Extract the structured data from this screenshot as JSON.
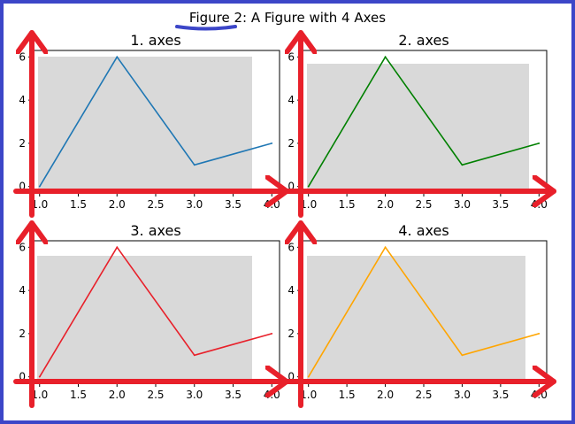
{
  "figure_title": {
    "prefix": "Figure 2",
    "rest": ": A Figure with 4 Axes"
  },
  "colors": {
    "frame": "#3c46c8",
    "annotation_arrow": "#e8202a",
    "highlight_box": "#d9d9d9",
    "underline": "#3c46c8"
  },
  "chart_data": [
    {
      "type": "line",
      "title": "1. axes",
      "x": [
        1.0,
        2.0,
        3.0,
        4.0
      ],
      "series": [
        {
          "values": [
            0,
            6,
            1,
            2
          ],
          "color": "#1f77b4"
        }
      ],
      "xlim": [
        0.9,
        4.1
      ],
      "ylim": [
        -0.3,
        6.3
      ],
      "xticks": [
        1.0,
        1.5,
        2.0,
        2.5,
        3.0,
        3.5,
        4.0
      ],
      "xtick_labels": [
        "1.0",
        "1.5",
        "2.0",
        "2.5",
        "3.0",
        "3.5",
        "4.0"
      ],
      "yticks": [
        0,
        2,
        4,
        6
      ],
      "ytick_labels": [
        "0",
        "2",
        "4",
        "6"
      ]
    },
    {
      "type": "line",
      "title": "2. axes",
      "x": [
        1.0,
        2.0,
        3.0,
        4.0
      ],
      "series": [
        {
          "values": [
            0,
            6,
            1,
            2
          ],
          "color": "#008000"
        }
      ],
      "xlim": [
        0.9,
        4.1
      ],
      "ylim": [
        -0.3,
        6.3
      ],
      "xticks": [
        1.0,
        1.5,
        2.0,
        2.5,
        3.0,
        3.5,
        4.0
      ],
      "xtick_labels": [
        "1.0",
        "1.5",
        "2.0",
        "2.5",
        "3.0",
        "3.5",
        "4.0"
      ],
      "yticks": [
        0,
        2,
        4,
        6
      ],
      "ytick_labels": [
        "0",
        "2",
        "4",
        "6"
      ]
    },
    {
      "type": "line",
      "title": "3. axes",
      "x": [
        1.0,
        2.0,
        3.0,
        4.0
      ],
      "series": [
        {
          "values": [
            0,
            6,
            1,
            2
          ],
          "color": "#e8202a"
        }
      ],
      "xlim": [
        0.9,
        4.1
      ],
      "ylim": [
        -0.3,
        6.3
      ],
      "xticks": [
        1.0,
        1.5,
        2.0,
        2.5,
        3.0,
        3.5,
        4.0
      ],
      "xtick_labels": [
        "1.0",
        "1.5",
        "2.0",
        "2.5",
        "3.0",
        "3.5",
        "4.0"
      ],
      "yticks": [
        0,
        2,
        4,
        6
      ],
      "ytick_labels": [
        "0",
        "2",
        "4",
        "6"
      ]
    },
    {
      "type": "line",
      "title": "4. axes",
      "x": [
        1.0,
        2.0,
        3.0,
        4.0
      ],
      "series": [
        {
          "values": [
            0,
            6,
            1,
            2
          ],
          "color": "#ffa500"
        }
      ],
      "xlim": [
        0.9,
        4.1
      ],
      "ylim": [
        -0.3,
        6.3
      ],
      "xticks": [
        1.0,
        1.5,
        2.0,
        2.5,
        3.0,
        3.5,
        4.0
      ],
      "xtick_labels": [
        "1.0",
        "1.5",
        "2.0",
        "2.5",
        "3.0",
        "3.5",
        "4.0"
      ],
      "yticks": [
        0,
        2,
        4,
        6
      ],
      "ytick_labels": [
        "0",
        "2",
        "4",
        "6"
      ]
    }
  ]
}
